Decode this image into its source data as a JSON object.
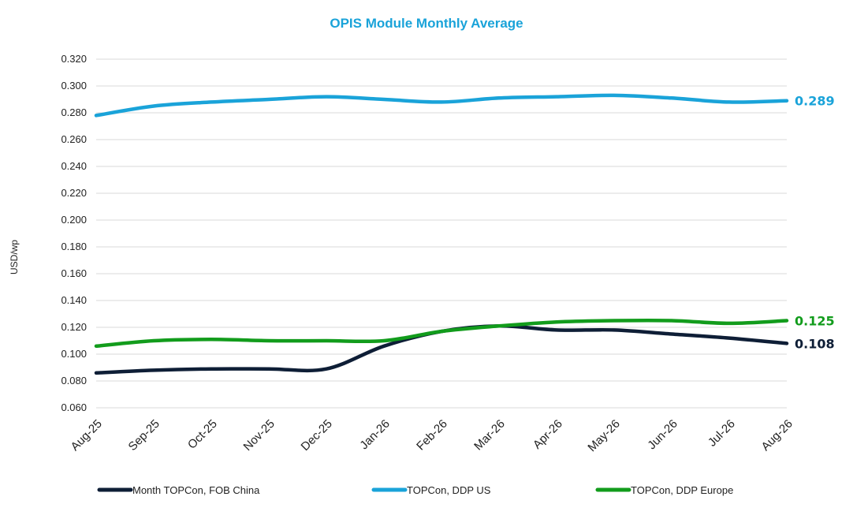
{
  "chart_data": {
    "type": "line",
    "title": "OPIS Module Monthly Average",
    "xlabel": "",
    "ylabel": "USD/wp",
    "ylim": [
      0.06,
      0.32
    ],
    "yticks": [
      "0.060",
      "0.080",
      "0.100",
      "0.120",
      "0.140",
      "0.160",
      "0.180",
      "0.200",
      "0.220",
      "0.240",
      "0.260",
      "0.280",
      "0.300",
      "0.320"
    ],
    "grid": true,
    "legend_position": "bottom",
    "categories": [
      "Aug-25",
      "Sep-25",
      "Oct-25",
      "Nov-25",
      "Dec-25",
      "Jan-26",
      "Feb-26",
      "Mar-26",
      "Apr-26",
      "May-26",
      "Jun-26",
      "Jul-26",
      "Aug-26"
    ],
    "series": [
      {
        "name": "Month TOPCon, FOB China",
        "color": "#0e1e36",
        "values": [
          0.086,
          0.088,
          0.089,
          0.089,
          0.089,
          0.106,
          0.117,
          0.121,
          0.118,
          0.118,
          0.115,
          0.112,
          0.108
        ],
        "end_label": "0.108"
      },
      {
        "name": "TOPCon, DDP US",
        "color": "#1aa3d9",
        "values": [
          0.278,
          0.285,
          0.288,
          0.29,
          0.292,
          0.29,
          0.288,
          0.291,
          0.292,
          0.293,
          0.291,
          0.288,
          0.289
        ],
        "end_label": "0.289"
      },
      {
        "name": "TOPCon, DDP Europe",
        "color": "#129c1c",
        "values": [
          0.106,
          0.11,
          0.111,
          0.11,
          0.11,
          0.11,
          0.117,
          0.121,
          0.124,
          0.125,
          0.125,
          0.123,
          0.125
        ],
        "end_label": "0.125"
      }
    ],
    "title_color": "#1aa3d9"
  }
}
